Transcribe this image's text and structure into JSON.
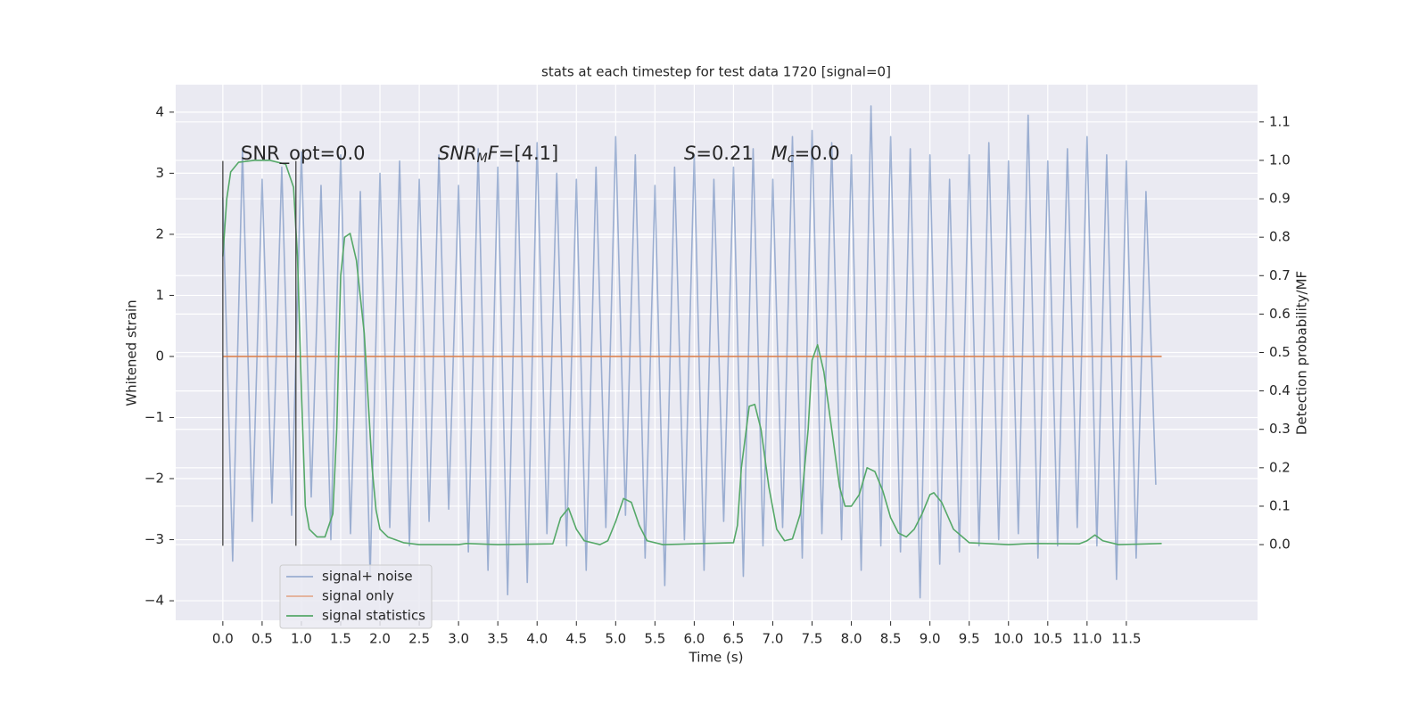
{
  "chart_data": {
    "type": "line",
    "title": "stats at each timestep for test data 1720 [signal=0]",
    "xlabel": "Time (s)",
    "ylabel": "Whitened strain",
    "y2label": "Detection probability/MF",
    "xlim": [
      -0.6,
      13.17
    ],
    "ylim": [
      -4.32,
      4.45
    ],
    "y2lim": [
      -0.197,
      1.197
    ],
    "xticks": [
      {
        "value": 0,
        "label": "0.0"
      },
      0.5,
      {
        "value": 1,
        "label": "1.0"
      },
      1.5,
      {
        "value": 2,
        "label": "2.0"
      },
      2.5,
      {
        "value": 3,
        "label": "3.0"
      },
      3.5,
      {
        "value": 4,
        "label": "4.0"
      },
      4.5,
      {
        "value": 5,
        "label": "5.0"
      },
      5.5,
      {
        "value": 6,
        "label": "6.0"
      },
      6.5,
      {
        "value": 7,
        "label": "7.0"
      },
      7.5,
      {
        "value": 8,
        "label": "8.0"
      },
      8.5,
      {
        "value": 9,
        "label": "9.0"
      },
      9.5,
      {
        "value": 10,
        "label": "10.0"
      },
      10.5,
      {
        "value": 11,
        "label": "11.0"
      },
      11.5
    ],
    "yticks": [
      {
        "value": -4,
        "label": "−4"
      },
      {
        "value": -3,
        "label": "−3"
      },
      {
        "value": -2,
        "label": "−2"
      },
      {
        "value": -1,
        "label": "−1"
      },
      0,
      1,
      2,
      3,
      4
    ],
    "y2ticks": [
      {
        "value": 0,
        "label": "0.0"
      },
      0.1,
      0.2,
      0.3,
      0.4,
      0.5,
      0.6,
      0.7,
      0.8,
      0.9,
      {
        "value": 1,
        "label": "1.0"
      },
      1.1
    ],
    "grid": true,
    "legend": "lower left",
    "series": [
      {
        "name": "signal+ noise",
        "color": "#4c72b0",
        "opacity": 0.5,
        "x": [
          0,
          0.125,
          0.25,
          0.375,
          0.5,
          0.625,
          0.75,
          0.875,
          1,
          1.125,
          1.25,
          1.375,
          1.5,
          1.625,
          1.75,
          1.875,
          2,
          2.125,
          2.25,
          2.375,
          2.5,
          2.625,
          2.75,
          2.875,
          3,
          3.125,
          3.25,
          3.375,
          3.5,
          3.625,
          3.75,
          3.875,
          4,
          4.125,
          4.25,
          4.375,
          4.5,
          4.625,
          4.75,
          4.875,
          5,
          5.125,
          5.25,
          5.375,
          5.5,
          5.625,
          5.75,
          5.875,
          6,
          6.125,
          6.25,
          6.375,
          6.5,
          6.625,
          6.75,
          6.875,
          7,
          7.125,
          7.25,
          7.375,
          7.5,
          7.625,
          7.75,
          7.875,
          8,
          8.125,
          8.25,
          8.375,
          8.5,
          8.625,
          8.75,
          8.875,
          9,
          9.125,
          9.25,
          9.375,
          9.5,
          9.625,
          9.75,
          9.875,
          10,
          10.125,
          10.25,
          10.375,
          10.5,
          10.625,
          10.75,
          10.875,
          11,
          11.125,
          11.25,
          11.375,
          11.5,
          11.625,
          11.75,
          11.875
        ],
        "values": [
          2.6,
          -3.35,
          3.4,
          -2.7,
          2.9,
          -2.4,
          3.1,
          -2.6,
          3.35,
          -2.3,
          2.8,
          -3.0,
          3.3,
          -2.9,
          2.7,
          -3.6,
          3.0,
          -2.8,
          3.2,
          -3.1,
          2.9,
          -2.7,
          3.3,
          -2.5,
          2.8,
          -3.2,
          3.4,
          -3.5,
          3.1,
          -3.9,
          3.2,
          -3.7,
          3.5,
          -2.9,
          3.0,
          -3.1,
          2.9,
          -3.5,
          3.1,
          -2.8,
          3.6,
          -2.6,
          3.3,
          -3.3,
          2.8,
          -3.75,
          3.1,
          -3.0,
          3.3,
          -3.5,
          2.9,
          -2.7,
          3.1,
          -3.6,
          3.4,
          -3.1,
          2.9,
          -2.8,
          3.6,
          -3.3,
          3.7,
          -2.9,
          3.5,
          -3.0,
          3.3,
          -3.5,
          4.1,
          -3.1,
          3.6,
          -3.2,
          3.4,
          -3.95,
          3.3,
          -3.4,
          2.9,
          -3.2,
          3.3,
          -3.1,
          3.5,
          -3.0,
          3.2,
          -2.9,
          3.95,
          -3.3,
          3.2,
          -3.1,
          3.4,
          -2.8,
          3.6,
          -3.1,
          3.3,
          -3.65,
          3.2,
          -3.3,
          2.7,
          -2.1
        ]
      },
      {
        "name": "signal only",
        "color": "#dd8452",
        "opacity": 1,
        "x": [
          0,
          11.95
        ],
        "values": [
          0,
          0
        ]
      },
      {
        "name": "signal statistics",
        "color": "#55a868",
        "opacity": 1,
        "axis": "y2",
        "x": [
          0,
          0.05,
          0.1,
          0.2,
          0.4,
          0.6,
          0.8,
          0.9,
          0.95,
          1.0,
          1.05,
          1.1,
          1.2,
          1.3,
          1.4,
          1.45,
          1.5,
          1.55,
          1.62,
          1.7,
          1.8,
          1.9,
          1.95,
          2.0,
          2.1,
          2.3,
          2.5,
          3.0,
          3.1,
          3.5,
          4.2,
          4.3,
          4.4,
          4.5,
          4.6,
          4.8,
          4.9,
          5.0,
          5.1,
          5.2,
          5.3,
          5.4,
          5.6,
          6.5,
          6.55,
          6.6,
          6.7,
          6.77,
          6.85,
          6.95,
          7.05,
          7.15,
          7.25,
          7.35,
          7.45,
          7.5,
          7.57,
          7.65,
          7.75,
          7.85,
          7.92,
          8.0,
          8.1,
          8.2,
          8.3,
          8.4,
          8.5,
          8.6,
          8.7,
          8.8,
          8.9,
          9.0,
          9.05,
          9.15,
          9.3,
          9.5,
          10.0,
          10.3,
          10.9,
          11.0,
          11.1,
          11.2,
          11.4,
          11.95
        ],
        "values": [
          0.75,
          0.9,
          0.97,
          0.995,
          1.0,
          1.0,
          0.99,
          0.93,
          0.75,
          0.4,
          0.1,
          0.04,
          0.02,
          0.02,
          0.08,
          0.3,
          0.7,
          0.8,
          0.81,
          0.74,
          0.55,
          0.2,
          0.09,
          0.04,
          0.02,
          0.005,
          0.0,
          0.0,
          0.003,
          0.0,
          0.002,
          0.07,
          0.095,
          0.04,
          0.01,
          0.0,
          0.01,
          0.06,
          0.12,
          0.11,
          0.05,
          0.01,
          0.0,
          0.005,
          0.05,
          0.2,
          0.36,
          0.365,
          0.3,
          0.15,
          0.04,
          0.01,
          0.015,
          0.08,
          0.3,
          0.48,
          0.52,
          0.45,
          0.3,
          0.15,
          0.1,
          0.1,
          0.13,
          0.2,
          0.19,
          0.14,
          0.07,
          0.03,
          0.02,
          0.04,
          0.08,
          0.13,
          0.135,
          0.11,
          0.04,
          0.005,
          0.0,
          0.003,
          0.002,
          0.01,
          0.025,
          0.01,
          0.0,
          0.003
        ]
      }
    ],
    "vlines": {
      "x": [
        0,
        0.93
      ],
      "ymin": -3.1,
      "ymax": 3.2,
      "color": "#444444"
    },
    "annotations": [
      {
        "parts": [
          {
            "text": "SNR_opt=0.0",
            "style": "normal"
          }
        ]
      },
      {
        "parts": [
          {
            "text": "SNR",
            "style": "italic"
          },
          {
            "text": "M",
            "style": "sub"
          },
          {
            "text": "F",
            "style": "italic"
          },
          {
            "text": "=[4.1]",
            "style": "normal"
          }
        ]
      },
      {
        "parts": [
          {
            "text": "S",
            "style": "italic"
          },
          {
            "text": "=0.21   ",
            "style": "normal"
          },
          {
            "text": "M",
            "style": "italic"
          },
          {
            "text": "c",
            "style": "sub"
          },
          {
            "text": "=0.0",
            "style": "normal"
          }
        ]
      }
    ]
  }
}
